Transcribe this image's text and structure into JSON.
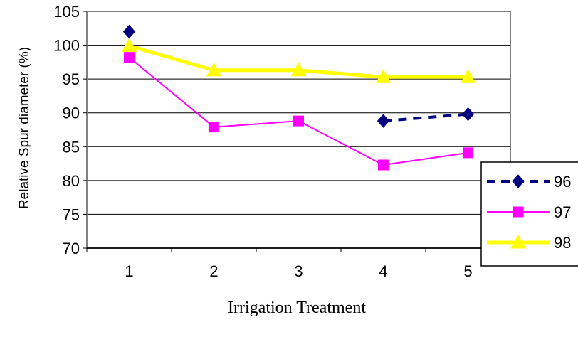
{
  "chart_data": {
    "type": "line",
    "title": "",
    "xlabel": "Irrigation Treatment",
    "ylabel": "Relative Spur diameter (%)",
    "categories": [
      "1",
      "2",
      "3",
      "4",
      "5"
    ],
    "ylim": [
      70,
      105
    ],
    "yticks": [
      "70",
      "75",
      "80",
      "85",
      "90",
      "95",
      "100",
      "105"
    ],
    "grid": true,
    "legend_position": "right",
    "series": [
      {
        "name": "96",
        "values": [
          102,
          null,
          null,
          88.8,
          89.8
        ],
        "color": "#000080",
        "marker": "diamond",
        "dash": true
      },
      {
        "name": "97",
        "values": [
          98.2,
          87.9,
          88.8,
          82.3,
          84.1
        ],
        "color": "#ff00ff",
        "marker": "square",
        "dash": false
      },
      {
        "name": "98",
        "values": [
          99.9,
          96.3,
          96.3,
          95.3,
          95.3
        ],
        "color": "#ffff00",
        "marker": "triangle",
        "dash": false
      }
    ]
  }
}
